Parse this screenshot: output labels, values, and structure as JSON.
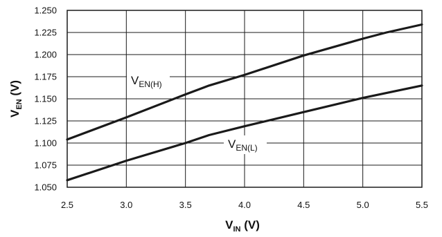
{
  "chart_data": {
    "type": "line",
    "xlabel": {
      "main": "V",
      "sub": "IN",
      "unit": " (V)"
    },
    "ylabel": {
      "main": "V",
      "sub": "EN",
      "unit": " (V)"
    },
    "xlim": [
      2.5,
      5.5
    ],
    "ylim": [
      1.05,
      1.25
    ],
    "x_ticks": [
      "2.5",
      "3.0",
      "3.5",
      "4.0",
      "4.5",
      "5.0",
      "5.5"
    ],
    "y_ticks": [
      "1.250",
      "1.225",
      "1.200",
      "1.175",
      "1.150",
      "1.125",
      "1.100",
      "1.075",
      "1.050"
    ],
    "grid": true,
    "series": [
      {
        "name": "EN(H)",
        "label": {
          "main": "V",
          "sub": "EN(H)"
        },
        "x": [
          2.5,
          3.0,
          3.5,
          3.7,
          4.0,
          4.5,
          5.0,
          5.2,
          5.5
        ],
        "y": [
          1.104,
          1.129,
          1.155,
          1.165,
          1.177,
          1.199,
          1.218,
          1.225,
          1.234
        ]
      },
      {
        "name": "EN(L)",
        "label": {
          "main": "V",
          "sub": "EN(L)"
        },
        "x": [
          2.5,
          3.0,
          3.5,
          3.7,
          4.0,
          4.5,
          5.0,
          5.5
        ],
        "y": [
          1.058,
          1.08,
          1.1,
          1.109,
          1.119,
          1.135,
          1.151,
          1.165
        ]
      }
    ],
    "colors": {
      "line": "#1a1a1a",
      "grid": "#1a1a1a",
      "background": "#ffffff"
    }
  }
}
